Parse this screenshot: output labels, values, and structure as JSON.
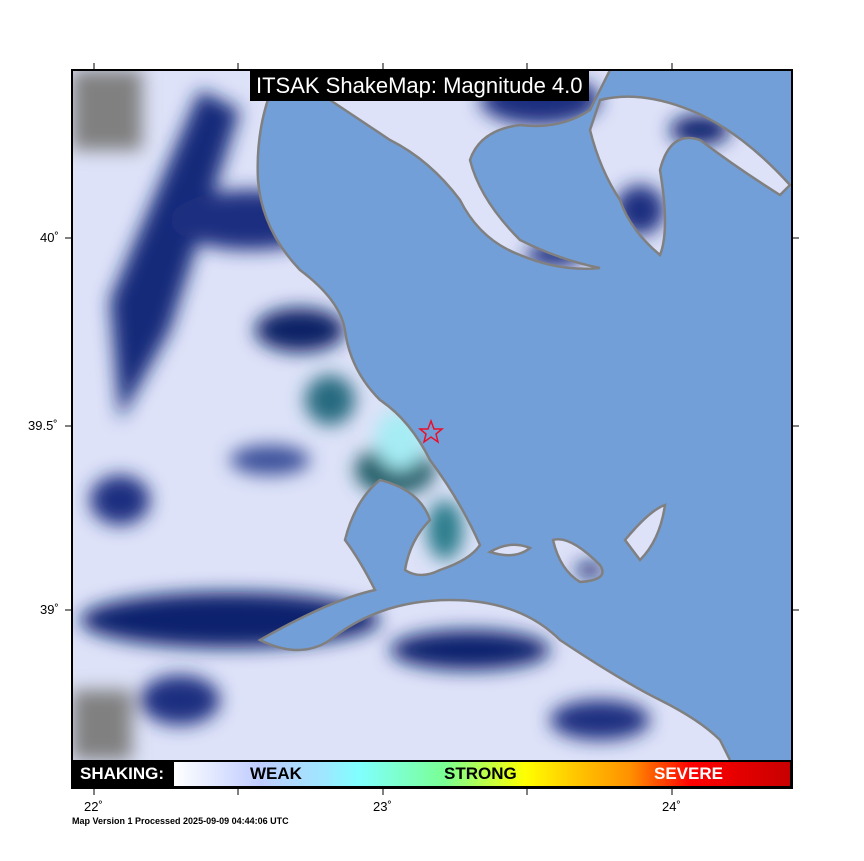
{
  "title": "ITSAK ShakeMap: Magnitude 4.0",
  "legend": {
    "label": "SHAKING:",
    "weak": "WEAK",
    "strong": "STRONG",
    "severe": "SEVERE"
  },
  "axes": {
    "longitude_ticks": [
      "22˚",
      "23˚",
      "24˚"
    ],
    "latitude_ticks": [
      "40˚",
      "39.5˚",
      "39˚"
    ]
  },
  "footer": "Map Version 1 Processed 2025-09-09 04:44:06 UTC",
  "epicenter": {
    "icon": "star-icon",
    "color": "#e8102a"
  },
  "colors": {
    "sea": "#739fd9",
    "land_low": "#dde2f8",
    "land_high": "#0b1f6e",
    "coast": "#808080"
  }
}
